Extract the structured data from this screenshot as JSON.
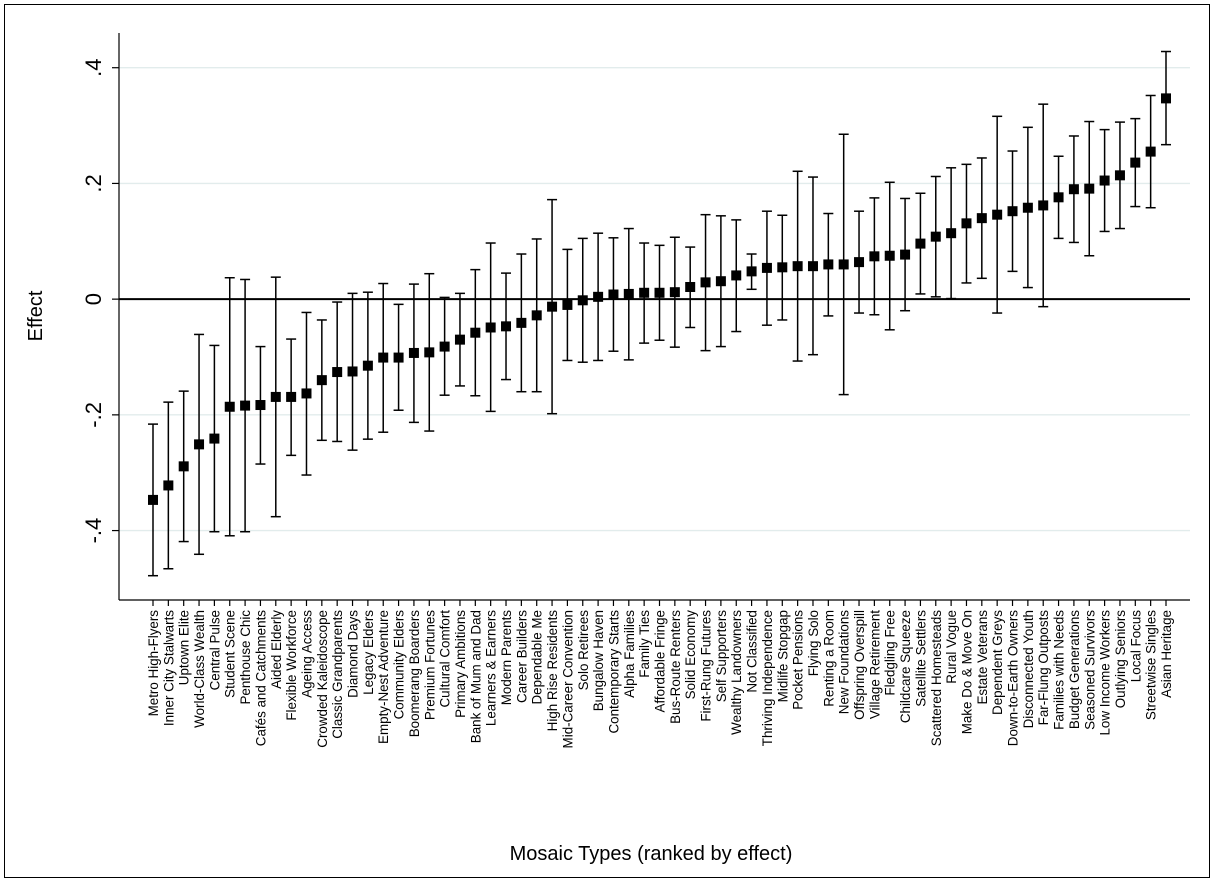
{
  "chart_data": {
    "type": "scatter",
    "subtype": "point-estimates-with-confidence-intervals",
    "xlabel": "Mosaic Types (ranked by effect)",
    "ylabel": "Effect",
    "ylim": [
      -0.52,
      0.46
    ],
    "yticks": [
      {
        "value": 0.4,
        "label": ".4"
      },
      {
        "value": 0.2,
        "label": ".2"
      },
      {
        "value": 0.0,
        "label": "0"
      },
      {
        "value": -0.2,
        "label": "-.2"
      },
      {
        "value": -0.4,
        "label": "-.4"
      }
    ],
    "grid": true,
    "reference_line": 0,
    "points": [
      {
        "label": "Metro High-Flyers",
        "estimate": -0.347,
        "lower": -0.478,
        "upper": -0.216
      },
      {
        "label": "Inner City Stalwarts",
        "estimate": -0.322,
        "lower": -0.466,
        "upper": -0.178
      },
      {
        "label": "Uptown Elite",
        "estimate": -0.289,
        "lower": -0.419,
        "upper": -0.159
      },
      {
        "label": "World-Class Wealth",
        "estimate": -0.251,
        "lower": -0.441,
        "upper": -0.061
      },
      {
        "label": "Central Pulse",
        "estimate": -0.241,
        "lower": -0.402,
        "upper": -0.08
      },
      {
        "label": "Student Scene",
        "estimate": -0.186,
        "lower": -0.409,
        "upper": 0.037
      },
      {
        "label": "Penthouse Chic",
        "estimate": -0.184,
        "lower": -0.402,
        "upper": 0.034
      },
      {
        "label": "Cafés and Catchments",
        "estimate": -0.183,
        "lower": -0.285,
        "upper": -0.082
      },
      {
        "label": "Aided Elderly",
        "estimate": -0.169,
        "lower": -0.376,
        "upper": 0.038
      },
      {
        "label": "Flexible Workforce",
        "estimate": -0.169,
        "lower": -0.27,
        "upper": -0.069
      },
      {
        "label": "Ageing Access",
        "estimate": -0.163,
        "lower": -0.304,
        "upper": -0.023
      },
      {
        "label": "Crowded Kaleidoscope",
        "estimate": -0.14,
        "lower": -0.244,
        "upper": -0.036
      },
      {
        "label": "Classic Grandparents",
        "estimate": -0.126,
        "lower": -0.246,
        "upper": -0.005
      },
      {
        "label": "Diamond Days",
        "estimate": -0.125,
        "lower": -0.261,
        "upper": 0.01
      },
      {
        "label": "Legacy Elders",
        "estimate": -0.115,
        "lower": -0.242,
        "upper": 0.012
      },
      {
        "label": "Empty-Nest Adventure",
        "estimate": -0.101,
        "lower": -0.23,
        "upper": 0.027
      },
      {
        "label": "Community Elders",
        "estimate": -0.101,
        "lower": -0.192,
        "upper": -0.009
      },
      {
        "label": "Boomerang Boarders",
        "estimate": -0.093,
        "lower": -0.213,
        "upper": 0.026
      },
      {
        "label": "Premium Fortunes",
        "estimate": -0.092,
        "lower": -0.228,
        "upper": 0.044
      },
      {
        "label": "Cultural Comfort",
        "estimate": -0.082,
        "lower": -0.166,
        "upper": 0.003
      },
      {
        "label": "Primary Ambitions",
        "estimate": -0.07,
        "lower": -0.15,
        "upper": 0.01
      },
      {
        "label": "Bank of Mum and Dad",
        "estimate": -0.058,
        "lower": -0.167,
        "upper": 0.051
      },
      {
        "label": "Learners & Earners",
        "estimate": -0.049,
        "lower": -0.194,
        "upper": 0.097
      },
      {
        "label": "Modern Parents",
        "estimate": -0.047,
        "lower": -0.139,
        "upper": 0.045
      },
      {
        "label": "Career Builders",
        "estimate": -0.041,
        "lower": -0.16,
        "upper": 0.078
      },
      {
        "label": "Dependable Me",
        "estimate": -0.028,
        "lower": -0.16,
        "upper": 0.104
      },
      {
        "label": "High Rise Residents",
        "estimate": -0.013,
        "lower": -0.198,
        "upper": 0.172
      },
      {
        "label": "Mid-Career Convention",
        "estimate": -0.01,
        "lower": -0.106,
        "upper": 0.086
      },
      {
        "label": "Solo Retirees",
        "estimate": -0.002,
        "lower": -0.109,
        "upper": 0.105
      },
      {
        "label": "Bungalow Haven",
        "estimate": 0.004,
        "lower": -0.106,
        "upper": 0.114
      },
      {
        "label": "Contemporary Starts",
        "estimate": 0.008,
        "lower": -0.09,
        "upper": 0.106
      },
      {
        "label": "Alpha Families",
        "estimate": 0.009,
        "lower": -0.105,
        "upper": 0.122
      },
      {
        "label": "Family Ties",
        "estimate": 0.011,
        "lower": -0.076,
        "upper": 0.097
      },
      {
        "label": "Affordable Fringe",
        "estimate": 0.011,
        "lower": -0.071,
        "upper": 0.093
      },
      {
        "label": "Bus-Route Renters",
        "estimate": 0.012,
        "lower": -0.083,
        "upper": 0.107
      },
      {
        "label": "Solid Economy",
        "estimate": 0.021,
        "lower": -0.049,
        "upper": 0.09
      },
      {
        "label": "First-Rung Futures",
        "estimate": 0.029,
        "lower": -0.089,
        "upper": 0.146
      },
      {
        "label": "Self Supporters",
        "estimate": 0.031,
        "lower": -0.082,
        "upper": 0.144
      },
      {
        "label": "Wealthy Landowners",
        "estimate": 0.041,
        "lower": -0.056,
        "upper": 0.137
      },
      {
        "label": "Not Classified",
        "estimate": 0.048,
        "lower": 0.017,
        "upper": 0.078
      },
      {
        "label": "Thriving Independence",
        "estimate": 0.054,
        "lower": -0.045,
        "upper": 0.152
      },
      {
        "label": "Midlife Stopgap",
        "estimate": 0.055,
        "lower": -0.036,
        "upper": 0.145
      },
      {
        "label": "Pocket Pensions",
        "estimate": 0.057,
        "lower": -0.107,
        "upper": 0.221
      },
      {
        "label": "Flying Solo",
        "estimate": 0.057,
        "lower": -0.096,
        "upper": 0.211
      },
      {
        "label": "Renting a Room",
        "estimate": 0.06,
        "lower": -0.029,
        "upper": 0.148
      },
      {
        "label": "New Foundations",
        "estimate": 0.06,
        "lower": -0.165,
        "upper": 0.285
      },
      {
        "label": "Offspring Overspill",
        "estimate": 0.064,
        "lower": -0.024,
        "upper": 0.152
      },
      {
        "label": "Village Retirement",
        "estimate": 0.074,
        "lower": -0.027,
        "upper": 0.175
      },
      {
        "label": "Fledgling Free",
        "estimate": 0.075,
        "lower": -0.053,
        "upper": 0.202
      },
      {
        "label": "Childcare Squeeze",
        "estimate": 0.077,
        "lower": -0.02,
        "upper": 0.174
      },
      {
        "label": "Satellite Settlers",
        "estimate": 0.096,
        "lower": 0.009,
        "upper": 0.183
      },
      {
        "label": "Scattered Homesteads",
        "estimate": 0.108,
        "lower": 0.004,
        "upper": 0.212
      },
      {
        "label": "Rural Vogue",
        "estimate": 0.114,
        "lower": 0.001,
        "upper": 0.227
      },
      {
        "label": "Make Do & Move On",
        "estimate": 0.131,
        "lower": 0.028,
        "upper": 0.233
      },
      {
        "label": "Estate Veterans",
        "estimate": 0.14,
        "lower": 0.036,
        "upper": 0.244
      },
      {
        "label": "Dependent Greys",
        "estimate": 0.146,
        "lower": -0.024,
        "upper": 0.316
      },
      {
        "label": "Down-to-Earth Owners",
        "estimate": 0.152,
        "lower": 0.048,
        "upper": 0.256
      },
      {
        "label": "Disconnected Youth",
        "estimate": 0.158,
        "lower": 0.02,
        "upper": 0.297
      },
      {
        "label": "Far-Flung Outposts",
        "estimate": 0.162,
        "lower": -0.013,
        "upper": 0.337
      },
      {
        "label": "Families with Needs",
        "estimate": 0.176,
        "lower": 0.105,
        "upper": 0.247
      },
      {
        "label": "Budget Generations",
        "estimate": 0.19,
        "lower": 0.098,
        "upper": 0.282
      },
      {
        "label": "Seasoned Survivors",
        "estimate": 0.191,
        "lower": 0.075,
        "upper": 0.307
      },
      {
        "label": "Low Income Workers",
        "estimate": 0.205,
        "lower": 0.117,
        "upper": 0.293
      },
      {
        "label": "Outlying Seniors",
        "estimate": 0.214,
        "lower": 0.122,
        "upper": 0.306
      },
      {
        "label": "Local Focus",
        "estimate": 0.236,
        "lower": 0.16,
        "upper": 0.312
      },
      {
        "label": "Streetwise Singles",
        "estimate": 0.255,
        "lower": 0.158,
        "upper": 0.352
      },
      {
        "label": "Asian Heritage",
        "estimate": 0.347,
        "lower": 0.267,
        "upper": 0.428
      }
    ],
    "colors": {
      "marker": "#000000",
      "error_bar": "#000000",
      "grid": "#e2ecec",
      "zero_line": "#000000"
    }
  }
}
